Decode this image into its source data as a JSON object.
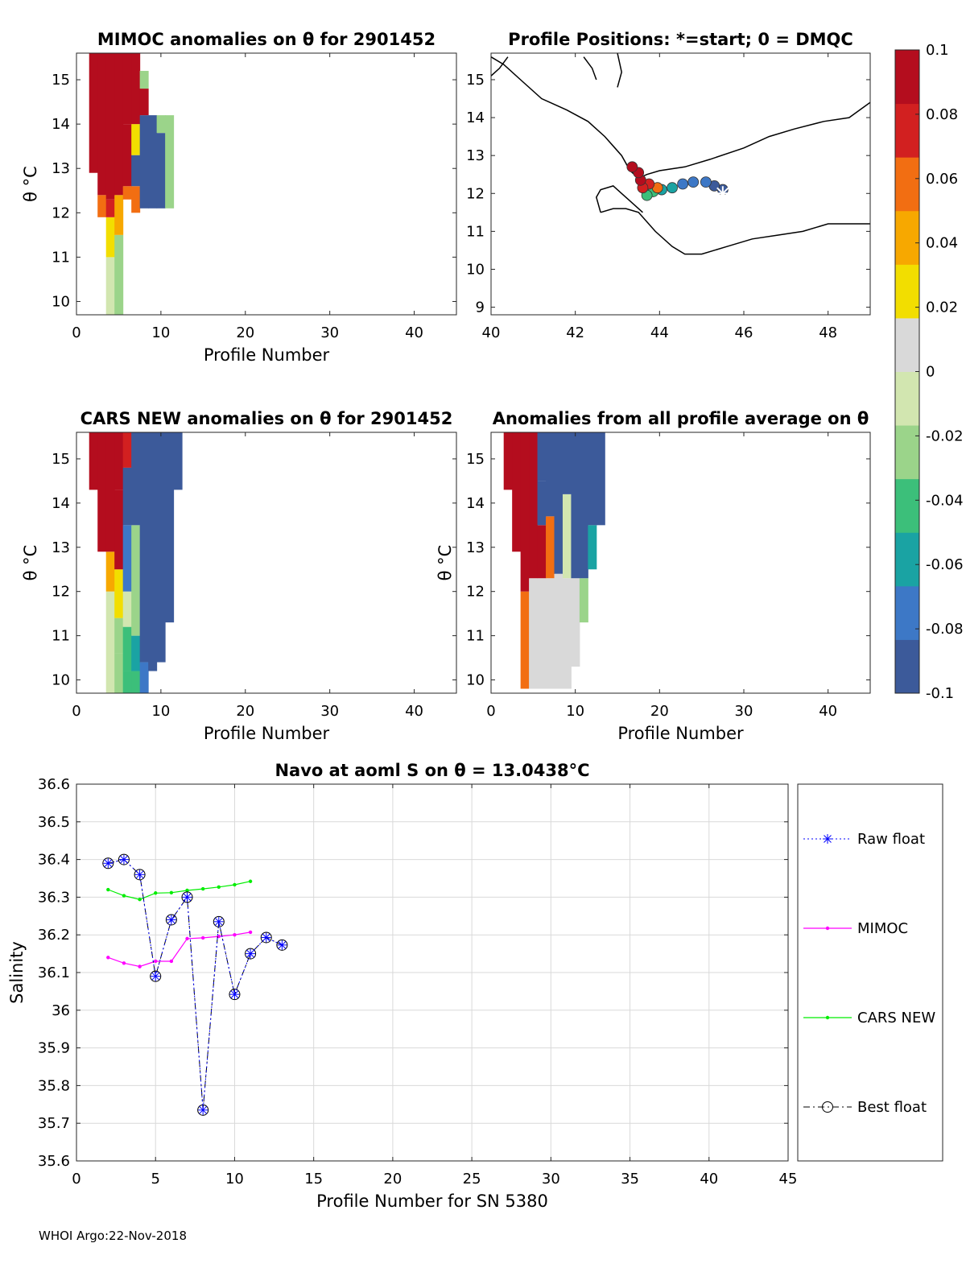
{
  "footer": "WHOI Argo:22-Nov-2018",
  "colors": {
    "raw_float": "#0000ff",
    "mimoc": "#ff00ff",
    "cars_new": "#00ee00",
    "best_float": "#000000",
    "grid": "#d9d9d9",
    "coast": "#000000"
  },
  "colorbar": {
    "ticks": [
      "0.1",
      "0.08",
      "0.06",
      "0.04",
      "0.02",
      "0",
      "-0.02",
      "-0.04",
      "-0.06",
      "-0.08",
      "-0.1"
    ],
    "range": [
      -0.1,
      0.1
    ],
    "colormap": [
      "#3c5a9a",
      "#3d78c6",
      "#1aa3a3",
      "#3cbf7a",
      "#9bd48a",
      "#d2e6b0",
      "#d9d9d9",
      "#f2de00",
      "#f7a800",
      "#f26e12",
      "#d22020",
      "#b40d1e"
    ]
  },
  "chart_data": [
    {
      "type": "heatmap",
      "id": "mimoc",
      "title": "MIMOC anomalies on θ  for 2901452",
      "xlabel": "Profile Number",
      "ylabel": "θ °C",
      "xlim": [
        0,
        45
      ],
      "ylim": [
        9.7,
        15.6
      ],
      "xticks": [
        "0",
        "10",
        "20",
        "30",
        "40"
      ],
      "yticks": [
        "10",
        "11",
        "12",
        "13",
        "14",
        "15"
      ],
      "columns": [
        {
          "x": 2,
          "levels": [
            [
              12.9,
              15.6,
              0.1
            ]
          ]
        },
        {
          "x": 3,
          "levels": [
            [
              11.9,
              12.4,
              0.05
            ],
            [
              12.4,
              15.6,
              0.1
            ]
          ]
        },
        {
          "x": 4,
          "levels": [
            [
              9.7,
              11.0,
              -0.015
            ],
            [
              11.0,
              11.9,
              0.03
            ],
            [
              11.9,
              12.3,
              0.07
            ],
            [
              12.3,
              15.6,
              0.1
            ]
          ]
        },
        {
          "x": 5,
          "levels": [
            [
              9.7,
              11.5,
              -0.02
            ],
            [
              11.5,
              12.4,
              0.04
            ],
            [
              12.4,
              15.6,
              0.1
            ]
          ]
        },
        {
          "x": 6,
          "levels": [
            [
              12.3,
              12.6,
              0.06
            ],
            [
              12.6,
              14.0,
              0.09
            ],
            [
              14.0,
              15.6,
              0.1
            ]
          ]
        },
        {
          "x": 7,
          "levels": [
            [
              12.0,
              12.6,
              0.05
            ],
            [
              12.6,
              13.3,
              -0.09
            ],
            [
              13.3,
              14.0,
              0.03
            ],
            [
              14.0,
              15.6,
              0.1
            ]
          ]
        },
        {
          "x": 8,
          "levels": [
            [
              12.1,
              14.2,
              -0.09
            ],
            [
              14.2,
              14.8,
              0.1
            ],
            [
              14.8,
              15.2,
              -0.02
            ]
          ]
        },
        {
          "x": 9,
          "levels": [
            [
              12.1,
              14.2,
              -0.09
            ]
          ]
        },
        {
          "x": 10,
          "levels": [
            [
              12.1,
              13.8,
              -0.09
            ],
            [
              13.8,
              14.2,
              -0.02
            ]
          ]
        },
        {
          "x": 11,
          "levels": [
            [
              12.1,
              14.2,
              -0.03
            ]
          ]
        }
      ]
    },
    {
      "type": "scatter",
      "id": "positions",
      "title": "Profile Positions: *=start; 0 = DMQC",
      "xlim": [
        40,
        49
      ],
      "ylim": [
        8.8,
        15.7
      ],
      "xticks": [
        "40",
        "42",
        "44",
        "46",
        "48"
      ],
      "yticks": [
        "9",
        "10",
        "11",
        "12",
        "13",
        "14",
        "15"
      ],
      "start_marker": {
        "lon": 45.5,
        "lat": 12.0
      },
      "points": [
        {
          "lon": 45.5,
          "lat": 12.1,
          "v": -0.1
        },
        {
          "lon": 45.3,
          "lat": 12.2,
          "v": -0.09
        },
        {
          "lon": 45.1,
          "lat": 12.3,
          "v": -0.08
        },
        {
          "lon": 44.8,
          "lat": 12.3,
          "v": -0.075
        },
        {
          "lon": 44.55,
          "lat": 12.25,
          "v": -0.07
        },
        {
          "lon": 44.3,
          "lat": 12.15,
          "v": -0.065
        },
        {
          "lon": 44.05,
          "lat": 12.1,
          "v": -0.055
        },
        {
          "lon": 43.85,
          "lat": 12.05,
          "v": -0.045
        },
        {
          "lon": 43.7,
          "lat": 11.95,
          "v": -0.04
        },
        {
          "lon": 43.95,
          "lat": 12.15,
          "v": 0.06
        },
        {
          "lon": 43.75,
          "lat": 12.25,
          "v": 0.07
        },
        {
          "lon": 43.6,
          "lat": 12.15,
          "v": 0.08
        },
        {
          "lon": 43.55,
          "lat": 12.35,
          "v": 0.09
        },
        {
          "lon": 43.5,
          "lat": 12.55,
          "v": 0.095
        },
        {
          "lon": 43.35,
          "lat": 12.7,
          "v": 0.1
        }
      ]
    },
    {
      "type": "heatmap",
      "id": "cars",
      "title": "CARS NEW anomalies on θ for 2901452",
      "xlabel": "Profile Number",
      "ylabel": "θ °C",
      "xlim": [
        0,
        45
      ],
      "ylim": [
        9.7,
        15.6
      ],
      "xticks": [
        "0",
        "10",
        "20",
        "30",
        "40"
      ],
      "yticks": [
        "10",
        "11",
        "12",
        "13",
        "14",
        "15"
      ],
      "columns": [
        {
          "x": 2,
          "levels": [
            [
              14.3,
              15.6,
              0.1
            ]
          ]
        },
        {
          "x": 3,
          "levels": [
            [
              12.9,
              15.6,
              0.1
            ]
          ]
        },
        {
          "x": 4,
          "levels": [
            [
              9.7,
              12.0,
              -0.015
            ],
            [
              12.0,
              12.9,
              0.04
            ],
            [
              12.9,
              15.6,
              0.1
            ]
          ]
        },
        {
          "x": 5,
          "levels": [
            [
              9.7,
              10.6,
              -0.02
            ],
            [
              10.6,
              11.4,
              -0.03
            ],
            [
              11.4,
              12.5,
              0.03
            ],
            [
              12.5,
              14.3,
              0.09
            ],
            [
              14.3,
              15.6,
              0.1
            ]
          ]
        },
        {
          "x": 6,
          "levels": [
            [
              9.7,
              10.2,
              -0.05
            ],
            [
              10.2,
              11.2,
              -0.04
            ],
            [
              11.2,
              12.0,
              -0.015
            ],
            [
              12.0,
              13.5,
              -0.08
            ],
            [
              13.5,
              14.8,
              -0.09
            ],
            [
              14.8,
              15.6,
              0.08
            ]
          ]
        },
        {
          "x": 7,
          "levels": [
            [
              9.7,
              10.2,
              -0.045
            ],
            [
              10.2,
              11.0,
              -0.06
            ],
            [
              11.0,
              13.5,
              -0.02
            ],
            [
              13.5,
              15.6,
              -0.09
            ]
          ]
        },
        {
          "x": 8,
          "levels": [
            [
              9.7,
              10.4,
              -0.08
            ],
            [
              10.4,
              15.6,
              -0.09
            ]
          ]
        },
        {
          "x": 9,
          "levels": [
            [
              10.2,
              15.6,
              -0.09
            ]
          ]
        },
        {
          "x": 10,
          "levels": [
            [
              10.4,
              15.6,
              -0.09
            ]
          ]
        },
        {
          "x": 11,
          "levels": [
            [
              11.3,
              15.6,
              -0.09
            ]
          ]
        },
        {
          "x": 12,
          "levels": [
            [
              14.3,
              15.6,
              -0.09
            ]
          ]
        }
      ]
    },
    {
      "type": "heatmap",
      "id": "allprof",
      "title": "Anomalies from all profile average on θ",
      "xlabel": "Profile Number",
      "ylabel": "θ °C",
      "xlim": [
        0,
        45
      ],
      "ylim": [
        9.7,
        15.6
      ],
      "xticks": [
        "0",
        "10",
        "20",
        "30",
        "40"
      ],
      "yticks": [
        "10",
        "11",
        "12",
        "13",
        "14",
        "15"
      ],
      "columns": [
        {
          "x": 2,
          "levels": [
            [
              14.3,
              15.6,
              0.1
            ]
          ]
        },
        {
          "x": 3,
          "levels": [
            [
              12.9,
              15.6,
              0.1
            ]
          ]
        },
        {
          "x": 4,
          "levels": [
            [
              9.8,
              12.0,
              0.05
            ],
            [
              12.0,
              15.6,
              0.1
            ]
          ]
        },
        {
          "x": 5,
          "levels": [
            [
              9.8,
              12.3,
              0.0
            ],
            [
              12.3,
              15.6,
              0.1
            ]
          ]
        },
        {
          "x": 6,
          "levels": [
            [
              9.8,
              12.3,
              0.0
            ],
            [
              12.3,
              13.5,
              0.09
            ],
            [
              13.5,
              14.5,
              -0.09
            ],
            [
              14.5,
              15.6,
              -0.09
            ]
          ]
        },
        {
          "x": 7,
          "levels": [
            [
              9.8,
              12.3,
              0.0
            ],
            [
              12.3,
              13.7,
              0.06
            ],
            [
              13.7,
              15.6,
              -0.09
            ]
          ]
        },
        {
          "x": 8,
          "levels": [
            [
              9.8,
              12.4,
              0.0
            ],
            [
              12.4,
              15.6,
              -0.09
            ]
          ]
        },
        {
          "x": 9,
          "levels": [
            [
              9.8,
              12.3,
              0.0
            ],
            [
              12.3,
              14.2,
              -0.01
            ],
            [
              14.2,
              15.6,
              -0.09
            ]
          ]
        },
        {
          "x": 10,
          "levels": [
            [
              10.3,
              12.3,
              0.0
            ],
            [
              12.3,
              15.6,
              -0.09
            ]
          ]
        },
        {
          "x": 11,
          "levels": [
            [
              11.3,
              12.3,
              -0.02
            ],
            [
              12.3,
              15.6,
              -0.09
            ]
          ]
        },
        {
          "x": 12,
          "levels": [
            [
              12.5,
              13.5,
              -0.06
            ],
            [
              13.5,
              15.6,
              -0.09
            ]
          ]
        },
        {
          "x": 13,
          "levels": [
            [
              13.5,
              15.6,
              -0.09
            ]
          ]
        }
      ]
    },
    {
      "type": "line",
      "id": "salinity",
      "title": "Navo at aoml S on θ = 13.0438°C",
      "xlabel": "Profile Number for SN 5380",
      "ylabel": "Salinity",
      "xlim": [
        0,
        45
      ],
      "ylim": [
        35.6,
        36.6
      ],
      "xticks": [
        "0",
        "5",
        "10",
        "15",
        "20",
        "25",
        "30",
        "35",
        "40",
        "45"
      ],
      "yticks": [
        "35.6",
        "35.7",
        "35.8",
        "35.9",
        "36",
        "36.1",
        "36.2",
        "36.3",
        "36.4",
        "36.5",
        "36.6"
      ],
      "series": [
        {
          "name": "Raw float",
          "style": "dotted-star",
          "x": [
            2,
            3,
            4,
            5,
            6,
            7,
            8,
            9,
            10,
            11,
            12,
            13
          ],
          "y": [
            36.39,
            36.4,
            36.36,
            36.09,
            36.24,
            36.3,
            35.735,
            36.235,
            36.042,
            36.15,
            36.193,
            36.173
          ]
        },
        {
          "name": "MIMOC",
          "style": "solid-dot",
          "x": [
            2,
            3,
            4,
            5,
            6,
            7,
            8,
            9,
            10,
            11
          ],
          "y": [
            36.14,
            36.125,
            36.116,
            36.13,
            36.13,
            36.19,
            36.192,
            36.196,
            36.2,
            36.207
          ]
        },
        {
          "name": "CARS NEW",
          "style": "solid-dot",
          "x": [
            2,
            3,
            4,
            5,
            6,
            7,
            8,
            9,
            10,
            11
          ],
          "y": [
            36.32,
            36.304,
            36.294,
            36.311,
            36.312,
            36.318,
            36.322,
            36.327,
            36.333,
            36.342
          ]
        },
        {
          "name": "Best float",
          "style": "dashdot-circle",
          "x": [
            2,
            3,
            4,
            5,
            6,
            7,
            8,
            9,
            10,
            11,
            12,
            13
          ],
          "y": [
            36.39,
            36.4,
            36.36,
            36.09,
            36.24,
            36.3,
            35.735,
            36.235,
            36.042,
            36.15,
            36.193,
            36.173
          ]
        }
      ]
    }
  ]
}
